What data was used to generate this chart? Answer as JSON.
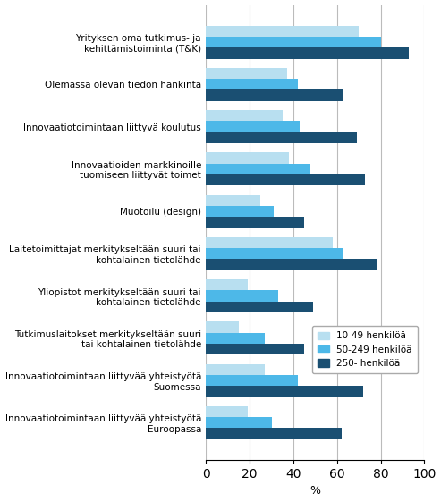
{
  "categories": [
    "Yrityksen oma tutkimus- ja\nkehittämistoiminta (T&K)",
    "Olemassa olevan tiedon hankinta",
    "Innovaatiotoimintaan liittyvä koulutus",
    "Innovaatioiden markkinoille\ntuomiseen liittyvät toimet",
    "Muotoilu (design)",
    "Laitetoimittajat merkitykseltään suuri tai\nkohtalainen tietolähde",
    "Yliopistot merkitykseltään suuri tai\nkohtalainen tietolähde",
    "Tutkimuslaitokset merkitykseltään suuri\ntai kohtalainen tietolähde",
    "Innovaatiotoimintaan liittyvää yhteistyötä\nSuomessa",
    "Innovaatiotoimintaan liittyvää yhteistyötä\nEuroopassa"
  ],
  "series": [
    {
      "name": "10-49 henkilöä",
      "values": [
        70,
        37,
        35,
        38,
        25,
        58,
        19,
        15,
        27,
        19
      ],
      "color": "#b8dff0"
    },
    {
      "name": "50-249 henkilöä",
      "values": [
        80,
        42,
        43,
        48,
        31,
        63,
        33,
        27,
        42,
        30
      ],
      "color": "#4db8e8"
    },
    {
      "name": "250- henkilöä",
      "values": [
        93,
        63,
        69,
        73,
        45,
        78,
        49,
        45,
        72,
        62
      ],
      "color": "#1a4f72"
    }
  ],
  "xlim": [
    0,
    100
  ],
  "xlabel": "%",
  "xticks": [
    0,
    20,
    40,
    60,
    80,
    100
  ],
  "bar_height": 0.26,
  "background_color": "#ffffff",
  "grid_color": "#bbbbbb",
  "tick_fontsize": 7.5,
  "label_fontsize": 9
}
